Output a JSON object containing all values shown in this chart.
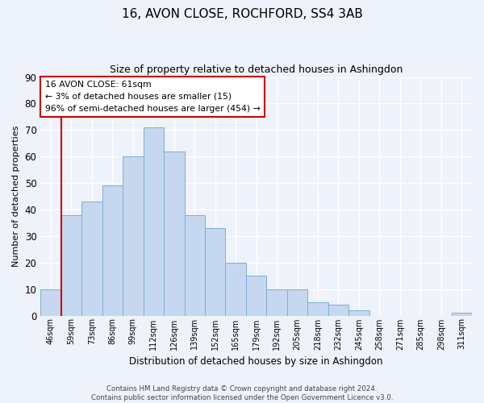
{
  "title": "16, AVON CLOSE, ROCHFORD, SS4 3AB",
  "subtitle": "Size of property relative to detached houses in Ashingdon",
  "xlabel": "Distribution of detached houses by size in Ashingdon",
  "ylabel": "Number of detached properties",
  "bar_labels": [
    "46sqm",
    "59sqm",
    "73sqm",
    "86sqm",
    "99sqm",
    "112sqm",
    "126sqm",
    "139sqm",
    "152sqm",
    "165sqm",
    "179sqm",
    "192sqm",
    "205sqm",
    "218sqm",
    "232sqm",
    "245sqm",
    "258sqm",
    "271sqm",
    "285sqm",
    "298sqm",
    "311sqm"
  ],
  "bar_values": [
    10,
    38,
    43,
    49,
    60,
    71,
    62,
    38,
    33,
    20,
    15,
    10,
    10,
    5,
    4,
    2,
    0,
    0,
    0,
    0,
    1
  ],
  "bar_color": "#c5d8f0",
  "bar_edge_color": "#7aaed4",
  "ylim": [
    0,
    90
  ],
  "yticks": [
    0,
    10,
    20,
    30,
    40,
    50,
    60,
    70,
    80,
    90
  ],
  "annotation_title": "16 AVON CLOSE: 61sqm",
  "annotation_line1": "← 3% of detached houses are smaller (15)",
  "annotation_line2": "96% of semi-detached houses are larger (454) →",
  "annotation_box_color": "#ffffff",
  "annotation_box_edge_color": "#cc0000",
  "vline_color": "#cc0000",
  "background_color": "#eef2fb",
  "grid_color": "#ffffff",
  "footer1": "Contains HM Land Registry data © Crown copyright and database right 2024.",
  "footer2": "Contains public sector information licensed under the Open Government Licence v3.0."
}
